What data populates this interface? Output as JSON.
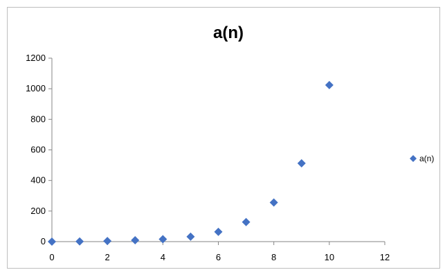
{
  "chart_data": {
    "type": "scatter",
    "title": "a(n)",
    "xlabel": "",
    "ylabel": "",
    "xlim": [
      0,
      12
    ],
    "ylim": [
      0,
      1200
    ],
    "x_ticks": [
      "0",
      "2",
      "4",
      "6",
      "8",
      "10",
      "12"
    ],
    "y_ticks": [
      "0",
      "200",
      "400",
      "600",
      "800",
      "1000",
      "1200"
    ],
    "grid": false,
    "legend_position": "right",
    "series": [
      {
        "name": "a(n)",
        "color": "#4472c4",
        "marker": "diamond",
        "x": [
          0,
          1,
          2,
          3,
          4,
          5,
          6,
          7,
          8,
          9,
          10
        ],
        "y": [
          0,
          1,
          4,
          9,
          16,
          32,
          64,
          128,
          256,
          512,
          1024
        ]
      }
    ]
  }
}
